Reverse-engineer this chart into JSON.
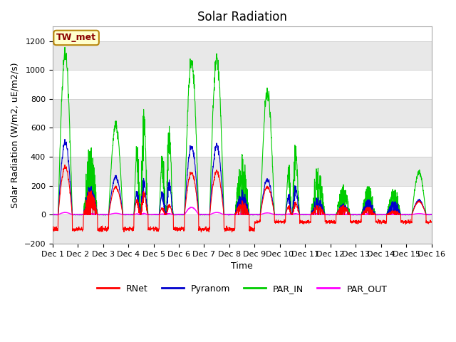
{
  "title": "Solar Radiation",
  "ylabel": "Solar Radiation (W/m2, uE/m2/s)",
  "xlabel": "Time",
  "ylim": [
    -200,
    1300
  ],
  "xlim": [
    0,
    15
  ],
  "yticks": [
    -200,
    0,
    200,
    400,
    600,
    800,
    1000,
    1200
  ],
  "x_tick_labels": [
    "Dec 1",
    "Dec 2",
    "Dec 3",
    "Dec 4",
    "Dec 5",
    "Dec 6",
    "Dec 7",
    "Dec 8",
    "Dec 9",
    "Dec 10",
    "Dec 11",
    "Dec 12",
    "Dec 13",
    "Dec 14",
    "Dec 15",
    "Dec 16"
  ],
  "station_label": "TW_met",
  "station_label_color": "#8B0000",
  "station_label_bg": "#FFFFCC",
  "station_label_border": "#B8860B",
  "legend_entries": [
    "RNet",
    "Pyranom",
    "PAR_IN",
    "PAR_OUT"
  ],
  "line_colors": {
    "RNet": "#FF0000",
    "Pyranom": "#0000CD",
    "PAR_IN": "#00CC00",
    "PAR_OUT": "#FF00FF"
  },
  "bg_stripe_color": "#E8E8E8",
  "plot_bg": "#FFFFFF",
  "title_fontsize": 12,
  "axis_fontsize": 9,
  "tick_fontsize": 8
}
